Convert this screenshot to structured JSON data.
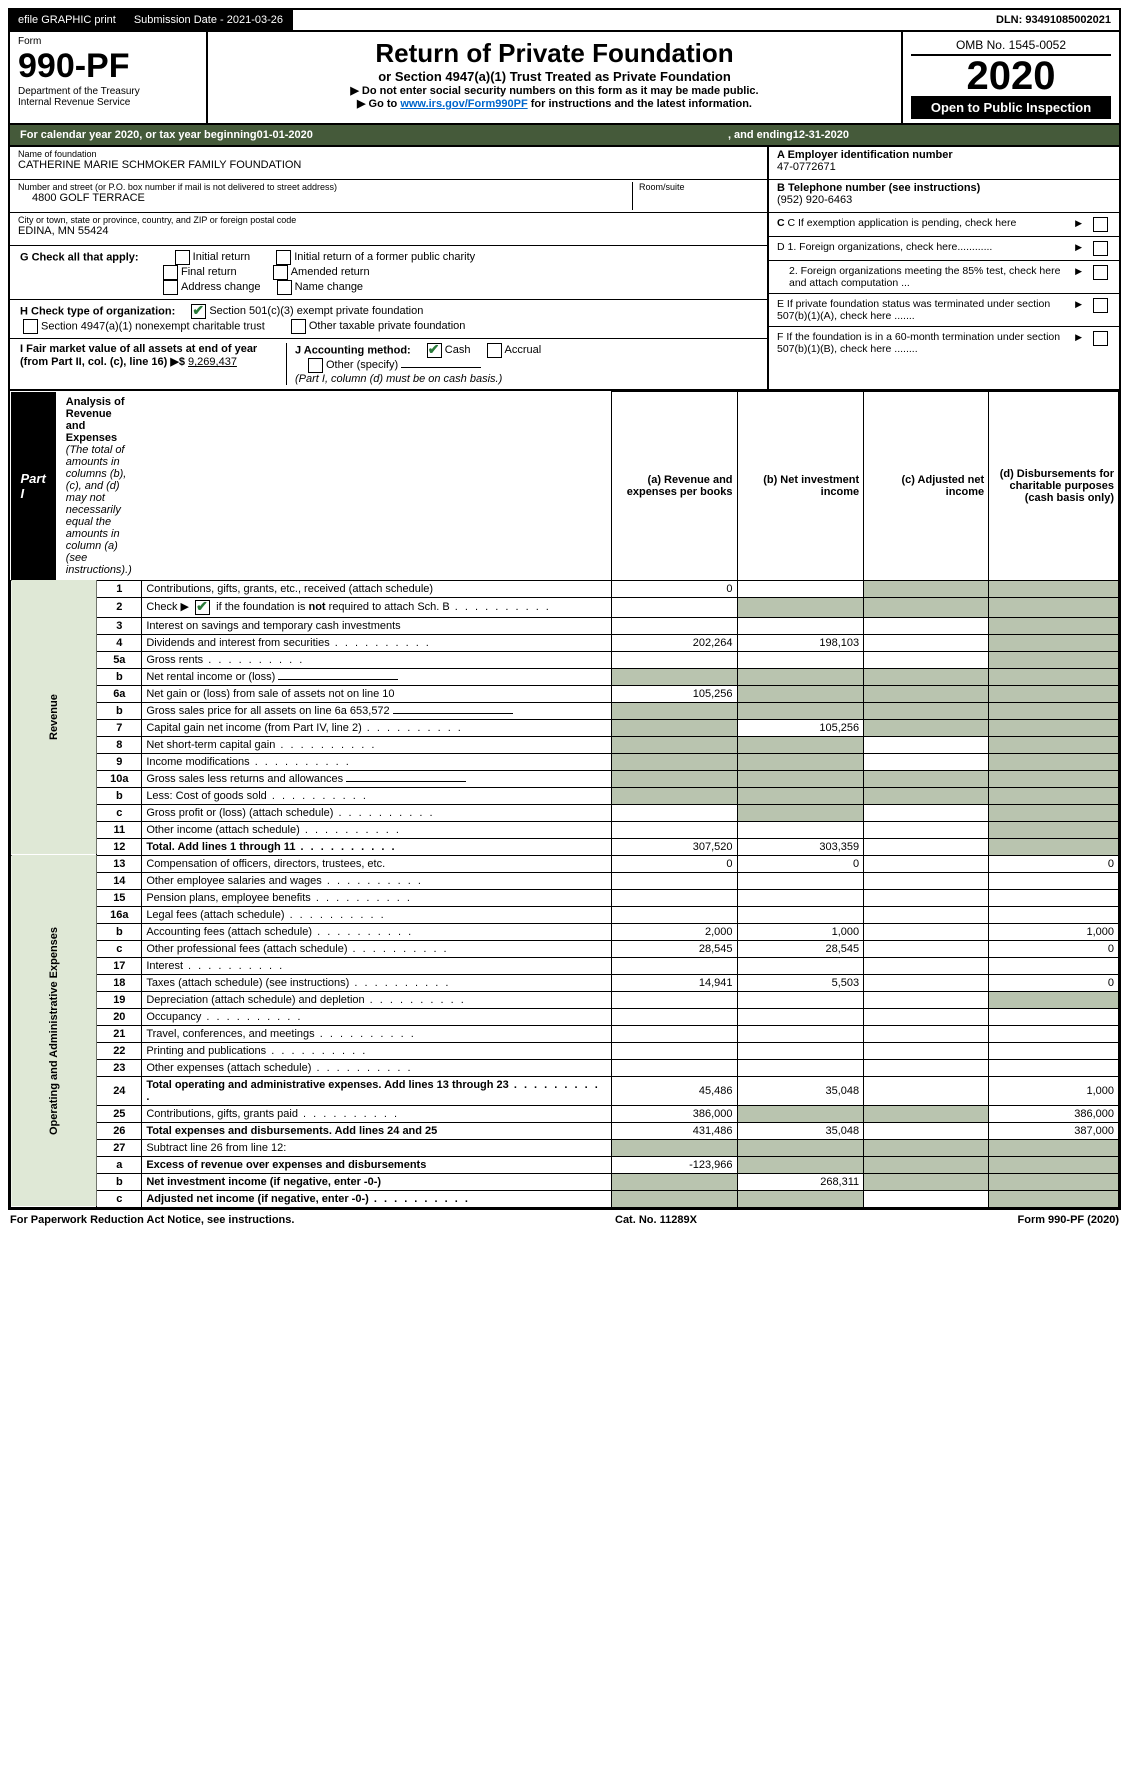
{
  "topstrip": {
    "efile": "efile GRAPHIC print",
    "submission_label": "Submission Date - 2021-03-26",
    "dln": "DLN: 93491085002021"
  },
  "header": {
    "form_word": "Form",
    "form_number": "990-PF",
    "dept1": "Department of the Treasury",
    "dept2": "Internal Revenue Service",
    "title": "Return of Private Foundation",
    "subtitle": "or Section 4947(a)(1) Trust Treated as Private Foundation",
    "instr1": "▶ Do not enter social security numbers on this form as it may be made public.",
    "instr2_pre": "▶ Go to ",
    "instr2_link": "www.irs.gov/Form990PF",
    "instr2_post": " for instructions and the latest information.",
    "omb": "OMB No. 1545-0052",
    "year": "2020",
    "inspect": "Open to Public Inspection"
  },
  "cal": {
    "pre": "For calendar year 2020, or tax year beginning ",
    "begin": "01-01-2020",
    "mid": ", and ending ",
    "end": "12-31-2020"
  },
  "entity": {
    "name_label": "Name of foundation",
    "name": "CATHERINE MARIE SCHMOKER FAMILY FOUNDATION",
    "addr_label": "Number and street (or P.O. box number if mail is not delivered to street address)",
    "addr": "4800 GOLF TERRACE",
    "room_label": "Room/suite",
    "city_label": "City or town, state or province, country, and ZIP or foreign postal code",
    "city": "EDINA, MN  55424",
    "a_label": "A Employer identification number",
    "a_val": "47-0772671",
    "b_label": "B Telephone number (see instructions)",
    "b_val": "(952) 920-6463",
    "c_label": "C If exemption application is pending, check here"
  },
  "checks": {
    "g_label": "G Check all that apply:",
    "g1": "Initial return",
    "g2": "Initial return of a former public charity",
    "g3": "Final return",
    "g4": "Amended return",
    "g5": "Address change",
    "g6": "Name change",
    "h_label": "H Check type of organization:",
    "h1": "Section 501(c)(3) exempt private foundation",
    "h2": "Section 4947(a)(1) nonexempt charitable trust",
    "h3": "Other taxable private foundation",
    "i_label": "I Fair market value of all assets at end of year (from Part II, col. (c), line 16) ▶$ ",
    "i_val": "9,269,437",
    "j_label": "J Accounting method:",
    "j1": "Cash",
    "j2": "Accrual",
    "j3": "Other (specify)",
    "j_note": "(Part I, column (d) must be on cash basis.)",
    "d1": "D 1. Foreign organizations, check here............",
    "d2": "2. Foreign organizations meeting the 85% test, check here and attach computation ...",
    "e": "E  If private foundation status was terminated under section 507(b)(1)(A), check here .......",
    "f": "F  If the foundation is in a 60-month termination under section 507(b)(1)(B), check here ........"
  },
  "part1": {
    "badge": "Part I",
    "title": "Analysis of Revenue and Expenses",
    "note": " (The total of amounts in columns (b), (c), and (d) may not necessarily equal the amounts in column (a) (see instructions).)",
    "col_a": "(a)  Revenue and expenses per books",
    "col_b": "(b)  Net investment income",
    "col_c": "(c)  Adjusted net income",
    "col_d": "(d)  Disbursements for charitable purposes (cash basis only)"
  },
  "vert": {
    "revenue": "Revenue",
    "expenses": "Operating and Administrative Expenses"
  },
  "rows_revenue": [
    {
      "n": "1",
      "d": "Contributions, gifts, grants, etc., received (attach schedule)",
      "a": "0",
      "b": "",
      "c": "g",
      "dd": "g"
    },
    {
      "n": "2",
      "d": "Check ▶ ☑ if the foundation is not required to attach Sch. B",
      "a": "",
      "b": "g",
      "c": "g",
      "dd": "g",
      "dots": true
    },
    {
      "n": "3",
      "d": "Interest on savings and temporary cash investments",
      "a": "",
      "b": "",
      "c": "",
      "dd": "g"
    },
    {
      "n": "4",
      "d": "Dividends and interest from securities",
      "a": "202,264",
      "b": "198,103",
      "c": "",
      "dd": "g",
      "dots": true
    },
    {
      "n": "5a",
      "d": "Gross rents",
      "a": "",
      "b": "",
      "c": "",
      "dd": "g",
      "dots": true
    },
    {
      "n": "b",
      "d": "Net rental income or (loss)",
      "a": "g",
      "b": "g",
      "c": "g",
      "dd": "g",
      "inline": true
    },
    {
      "n": "6a",
      "d": "Net gain or (loss) from sale of assets not on line 10",
      "a": "105,256",
      "b": "g",
      "c": "g",
      "dd": "g"
    },
    {
      "n": "b",
      "d": "Gross sales price for all assets on line 6a      653,572",
      "a": "g",
      "b": "g",
      "c": "g",
      "dd": "g",
      "inline": true
    },
    {
      "n": "7",
      "d": "Capital gain net income (from Part IV, line 2)",
      "a": "g",
      "b": "105,256",
      "c": "g",
      "dd": "g",
      "dots": true
    },
    {
      "n": "8",
      "d": "Net short-term capital gain",
      "a": "g",
      "b": "g",
      "c": "",
      "dd": "g",
      "dots": true
    },
    {
      "n": "9",
      "d": "Income modifications",
      "a": "g",
      "b": "g",
      "c": "",
      "dd": "g",
      "dots": true
    },
    {
      "n": "10a",
      "d": "Gross sales less returns and allowances",
      "a": "g",
      "b": "g",
      "c": "g",
      "dd": "g",
      "inline": true
    },
    {
      "n": "b",
      "d": "Less: Cost of goods sold",
      "a": "g",
      "b": "g",
      "c": "g",
      "dd": "g",
      "dots": true,
      "inline": true
    },
    {
      "n": "c",
      "d": "Gross profit or (loss) (attach schedule)",
      "a": "",
      "b": "g",
      "c": "",
      "dd": "g",
      "dots": true
    },
    {
      "n": "11",
      "d": "Other income (attach schedule)",
      "a": "",
      "b": "",
      "c": "",
      "dd": "g",
      "dots": true
    },
    {
      "n": "12",
      "d": "Total. Add lines 1 through 11",
      "a": "307,520",
      "b": "303,359",
      "c": "",
      "dd": "g",
      "bold": true,
      "dots": true
    }
  ],
  "rows_expenses": [
    {
      "n": "13",
      "d": "Compensation of officers, directors, trustees, etc.",
      "a": "0",
      "b": "0",
      "c": "",
      "dd": "0"
    },
    {
      "n": "14",
      "d": "Other employee salaries and wages",
      "a": "",
      "b": "",
      "c": "",
      "dd": "",
      "dots": true
    },
    {
      "n": "15",
      "d": "Pension plans, employee benefits",
      "a": "",
      "b": "",
      "c": "",
      "dd": "",
      "dots": true
    },
    {
      "n": "16a",
      "d": "Legal fees (attach schedule)",
      "a": "",
      "b": "",
      "c": "",
      "dd": "",
      "dots": true
    },
    {
      "n": "b",
      "d": "Accounting fees (attach schedule)",
      "a": "2,000",
      "b": "1,000",
      "c": "",
      "dd": "1,000",
      "dots": true
    },
    {
      "n": "c",
      "d": "Other professional fees (attach schedule)",
      "a": "28,545",
      "b": "28,545",
      "c": "",
      "dd": "0",
      "dots": true
    },
    {
      "n": "17",
      "d": "Interest",
      "a": "",
      "b": "",
      "c": "",
      "dd": "",
      "dots": true
    },
    {
      "n": "18",
      "d": "Taxes (attach schedule) (see instructions)",
      "a": "14,941",
      "b": "5,503",
      "c": "",
      "dd": "0",
      "dots": true
    },
    {
      "n": "19",
      "d": "Depreciation (attach schedule) and depletion",
      "a": "",
      "b": "",
      "c": "",
      "dd": "g",
      "dots": true
    },
    {
      "n": "20",
      "d": "Occupancy",
      "a": "",
      "b": "",
      "c": "",
      "dd": "",
      "dots": true
    },
    {
      "n": "21",
      "d": "Travel, conferences, and meetings",
      "a": "",
      "b": "",
      "c": "",
      "dd": "",
      "dots": true
    },
    {
      "n": "22",
      "d": "Printing and publications",
      "a": "",
      "b": "",
      "c": "",
      "dd": "",
      "dots": true
    },
    {
      "n": "23",
      "d": "Other expenses (attach schedule)",
      "a": "",
      "b": "",
      "c": "",
      "dd": "",
      "dots": true
    },
    {
      "n": "24",
      "d": "Total operating and administrative expenses. Add lines 13 through 23",
      "a": "45,486",
      "b": "35,048",
      "c": "",
      "dd": "1,000",
      "bold": true,
      "dots": true
    },
    {
      "n": "25",
      "d": "Contributions, gifts, grants paid",
      "a": "386,000",
      "b": "g",
      "c": "g",
      "dd": "386,000",
      "dots": true
    },
    {
      "n": "26",
      "d": "Total expenses and disbursements. Add lines 24 and 25",
      "a": "431,486",
      "b": "35,048",
      "c": "",
      "dd": "387,000",
      "bold": true
    },
    {
      "n": "27",
      "d": "Subtract line 26 from line 12:",
      "a": "g",
      "b": "g",
      "c": "g",
      "dd": "g"
    },
    {
      "n": "a",
      "d": "Excess of revenue over expenses and disbursements",
      "a": "-123,966",
      "b": "g",
      "c": "g",
      "dd": "g",
      "bold": true
    },
    {
      "n": "b",
      "d": "Net investment income (if negative, enter -0-)",
      "a": "g",
      "b": "268,311",
      "c": "g",
      "dd": "g",
      "bold": true
    },
    {
      "n": "c",
      "d": "Adjusted net income (if negative, enter -0-)",
      "a": "g",
      "b": "g",
      "c": "",
      "dd": "g",
      "bold": true,
      "dots": true
    }
  ],
  "footer": {
    "left": "For Paperwork Reduction Act Notice, see instructions.",
    "mid": "Cat. No. 11289X",
    "right": "Form 990-PF (2020)"
  },
  "styling": {
    "header_bg": "#455a3a",
    "grey_cell": "#b9c4af",
    "vert_bg": "#dfe8d6",
    "link_color": "#0066cc",
    "check_color": "#2a7a3a"
  }
}
